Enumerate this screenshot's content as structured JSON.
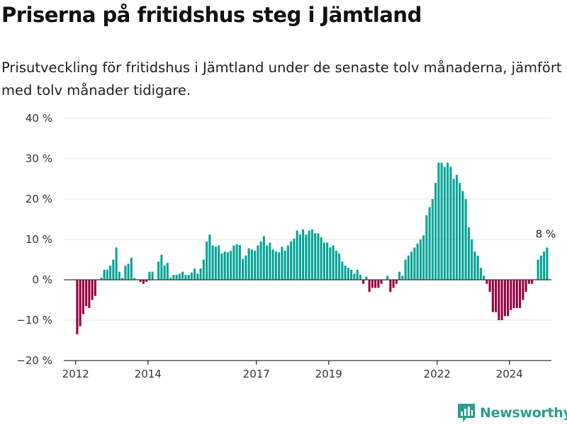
{
  "header": {
    "title": "Priserna på fritidshus steg i Jämtland",
    "subtitle": "Prisutveckling för fritidshus i Jämtland under de senaste tolv månaderna, jämfört med tolv månader tidigare."
  },
  "brand": {
    "name": "Newsworthy",
    "icon": "bar-chart-logo-icon"
  },
  "colors": {
    "positive": "#00a396",
    "negative": "#970041",
    "axis": "#333333",
    "grid": "#e3e3e3"
  },
  "chart_data": {
    "type": "bar",
    "ylim": [
      -20,
      40
    ],
    "yticks": [
      -20,
      -10,
      0,
      10,
      20,
      30,
      40
    ],
    "ytick_labels": [
      "−20 %",
      "−10 %",
      "0 %",
      "10 %",
      "20 %",
      "30 %",
      "40 %"
    ],
    "xticks": [
      {
        "label": "2012",
        "year": 2012
      },
      {
        "label": "2014",
        "year": 2014
      },
      {
        "label": "2017",
        "year": 2017
      },
      {
        "label": "2019",
        "year": 2019
      },
      {
        "label": "2022",
        "year": 2022
      },
      {
        "label": "2024",
        "year": 2024
      }
    ],
    "grid": true,
    "start": "2011-10",
    "frequency": "monthly",
    "values": [
      0,
      0,
      0,
      -13.5,
      -11.5,
      -8.5,
      -6.5,
      -7,
      -5,
      -4,
      0,
      0.5,
      2.5,
      2.5,
      3.5,
      5,
      8,
      2,
      0.5,
      3.5,
      4,
      5.5,
      0.5,
      0,
      -0.5,
      -1,
      -0.5,
      2,
      2,
      0,
      4.5,
      6.2,
      3.5,
      4.2,
      0.5,
      1.2,
      1.2,
      1.5,
      2,
      1.2,
      1.2,
      1.8,
      2.8,
      1.5,
      2.8,
      5,
      9.5,
      11.2,
      8.5,
      8.2,
      8.5,
      6.5,
      7,
      6.8,
      7.2,
      8.5,
      8.8,
      8.6,
      5.2,
      6,
      7.8,
      7.5,
      7.2,
      8.5,
      9.5,
      10.8,
      8.5,
      9.2,
      7.5,
      7,
      6.8,
      8.2,
      7.2,
      8.5,
      9.5,
      10.2,
      12.2,
      11.2,
      12.5,
      11.2,
      12.2,
      12.5,
      11.5,
      11.5,
      10.5,
      9.2,
      9.2,
      8,
      8.5,
      7.2,
      6.5,
      4.5,
      3.5,
      3,
      2.5,
      1.5,
      2.5,
      1.2,
      -1,
      0.8,
      -3,
      -2,
      -2,
      -2,
      -1,
      0,
      1,
      -3,
      -2,
      -1,
      2,
      1,
      5,
      6,
      7,
      8,
      9,
      10,
      11,
      16,
      18,
      20,
      24,
      29,
      29,
      28,
      29,
      28,
      25,
      26,
      24,
      22,
      20,
      13,
      10,
      7,
      6,
      3,
      1,
      -1,
      -3,
      -8,
      -8,
      -10,
      -10,
      -9,
      -9,
      -7.5,
      -7,
      -7,
      -7,
      -5,
      -3,
      -1,
      -1,
      0,
      5,
      6,
      7,
      8
    ],
    "annotations": [
      {
        "text": "8 %",
        "index": -1
      }
    ]
  }
}
